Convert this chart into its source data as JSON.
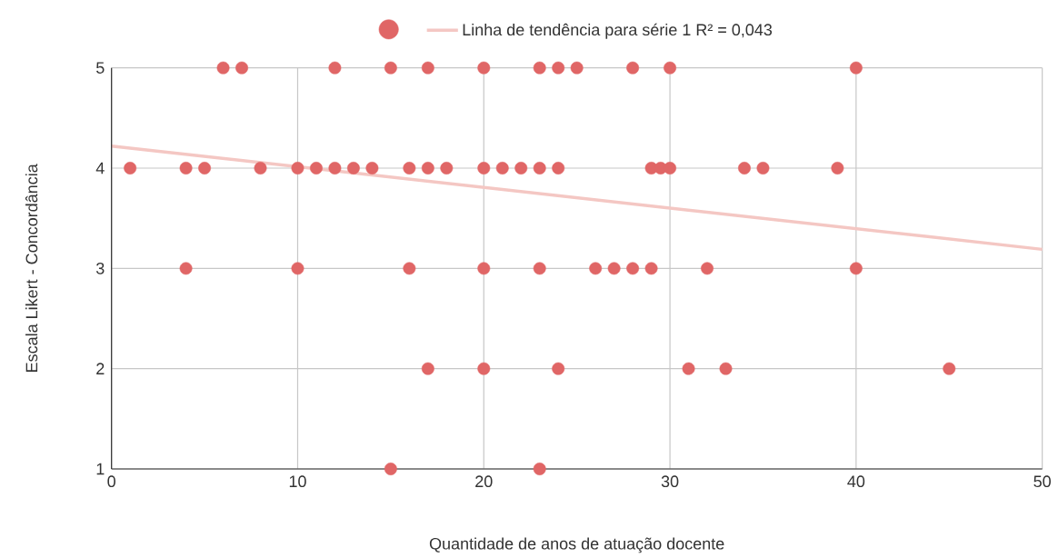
{
  "chart_data": {
    "type": "scatter",
    "xlabel": "Quantidade de anos de atuação docente",
    "ylabel": "Escala Likert - Concordância",
    "xlim": [
      0,
      50
    ],
    "xticks": [
      0,
      10,
      20,
      30,
      40,
      50
    ],
    "ylim": [
      1,
      5
    ],
    "yticks": [
      1,
      2,
      3,
      4,
      5
    ],
    "grid": true,
    "legend": "top",
    "series": [
      {
        "color": "#e06666",
        "x": [
          6,
          7,
          12,
          15,
          17,
          20,
          23,
          24,
          25,
          28,
          30,
          40,
          1,
          4,
          5,
          8,
          10,
          11,
          12,
          13,
          14,
          16,
          17,
          18,
          20,
          21,
          22,
          23,
          24,
          29,
          29.5,
          30,
          34,
          35,
          39,
          4,
          10,
          16,
          20,
          23,
          26,
          27,
          28,
          29,
          32,
          40,
          17,
          20,
          24,
          31,
          33,
          45,
          15,
          23
        ],
        "values": [
          5,
          5,
          5,
          5,
          5,
          5,
          5,
          5,
          5,
          5,
          5,
          5,
          4,
          4,
          4,
          4,
          4,
          4,
          4,
          4,
          4,
          4,
          4,
          4,
          4,
          4,
          4,
          4,
          4,
          4,
          4,
          4,
          4,
          4,
          4,
          3,
          3,
          3,
          3,
          3,
          3,
          3,
          3,
          3,
          3,
          3,
          2,
          2,
          2,
          2,
          2,
          2,
          1,
          1
        ]
      },
      {
        "type": "line",
        "name": "Linha de tendência para série 1 R² = 0,043",
        "color": "#f4c7c3",
        "x": [
          0,
          50
        ],
        "values": [
          4.22,
          3.19
        ]
      }
    ]
  }
}
